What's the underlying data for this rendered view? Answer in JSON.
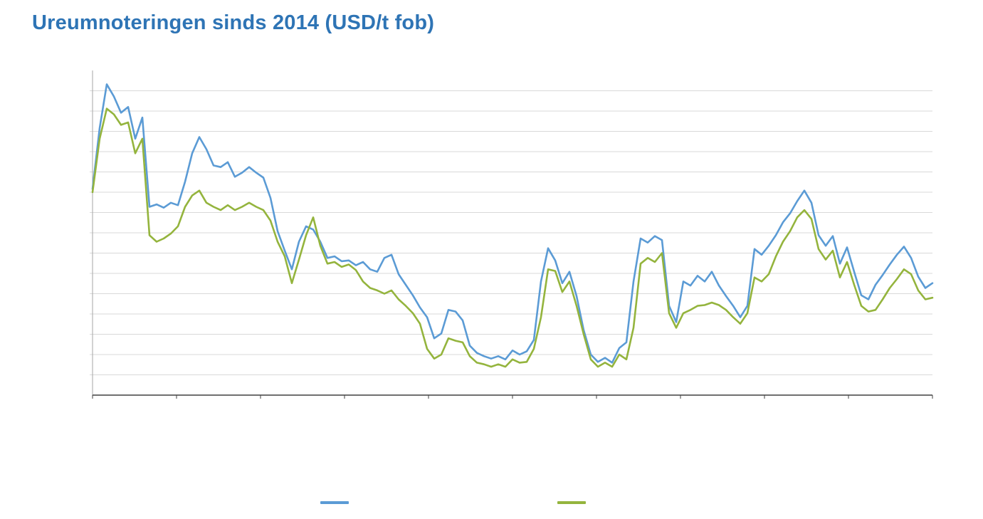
{
  "title": "Ureumnoteringen sinds 2014 (USD/t fob)",
  "colors": {
    "title": "#2E74B5",
    "series_blue": "#5B9BD5",
    "series_green": "#94B43D",
    "gridline": "#D9D9D9",
    "axis": "#404040",
    "axis_minor": "#A6A6A6"
  },
  "legend": {
    "items": [
      {
        "name": "series-blue",
        "label": "",
        "color": "#5B9BD5"
      },
      {
        "name": "series-green",
        "label": "",
        "color": "#94B43D"
      }
    ]
  },
  "chart_data": {
    "type": "line",
    "title": "Ureumnoteringen sinds 2014 (USD/t fob)",
    "xlabel": "",
    "ylabel": "",
    "x_note": "119 equally spaced samples starting in 2014; x and y tick labels are not visible in the screenshot",
    "ylim": [
      100,
      500
    ],
    "grid_step": 25,
    "grid": true,
    "legend_position": "bottom",
    "series": [
      {
        "name": "blue",
        "color": "#5B9BD5",
        "values": [
          354,
          429,
          483,
          468,
          448,
          455,
          416,
          442,
          332,
          335,
          331,
          337,
          334,
          363,
          398,
          418,
          403,
          383,
          381,
          387,
          369,
          374,
          381,
          374,
          368,
          343,
          302,
          278,
          255,
          289,
          308,
          304,
          289,
          269,
          271,
          265,
          266,
          260,
          264,
          255,
          252,
          269,
          273,
          249,
          236,
          223,
          208,
          196,
          170,
          176,
          205,
          203,
          192,
          161,
          152,
          148,
          145,
          148,
          144,
          155,
          150,
          154,
          168,
          240,
          281,
          266,
          238,
          252,
          222,
          180,
          150,
          141,
          146,
          140,
          158,
          165,
          240,
          293,
          288,
          296,
          291,
          210,
          190,
          240,
          235,
          247,
          240,
          252,
          235,
          222,
          210,
          196,
          210,
          280,
          273,
          284,
          297,
          313,
          324,
          339,
          352,
          337,
          297,
          284,
          296,
          262,
          282,
          252,
          223,
          218,
          236,
          248,
          261,
          273,
          283,
          269,
          246,
          232,
          238
        ]
      },
      {
        "name": "green",
        "color": "#94B43D",
        "values": [
          350,
          416,
          453,
          446,
          433,
          436,
          398,
          416,
          297,
          289,
          293,
          299,
          308,
          332,
          346,
          352,
          337,
          332,
          328,
          334,
          328,
          332,
          337,
          332,
          328,
          315,
          289,
          271,
          238,
          267,
          297,
          319,
          284,
          262,
          264,
          258,
          261,
          254,
          240,
          232,
          229,
          225,
          229,
          218,
          210,
          201,
          188,
          157,
          145,
          150,
          170,
          167,
          165,
          148,
          140,
          138,
          135,
          138,
          135,
          144,
          140,
          141,
          157,
          196,
          255,
          253,
          227,
          240,
          210,
          175,
          144,
          135,
          140,
          135,
          150,
          144,
          183,
          262,
          269,
          264,
          275,
          201,
          183,
          201,
          205,
          210,
          211,
          214,
          211,
          205,
          196,
          188,
          201,
          245,
          240,
          249,
          271,
          289,
          302,
          319,
          328,
          317,
          280,
          267,
          278,
          245,
          264,
          236,
          210,
          203,
          205,
          218,
          232,
          243,
          255,
          249,
          229,
          218,
          220
        ]
      }
    ]
  }
}
